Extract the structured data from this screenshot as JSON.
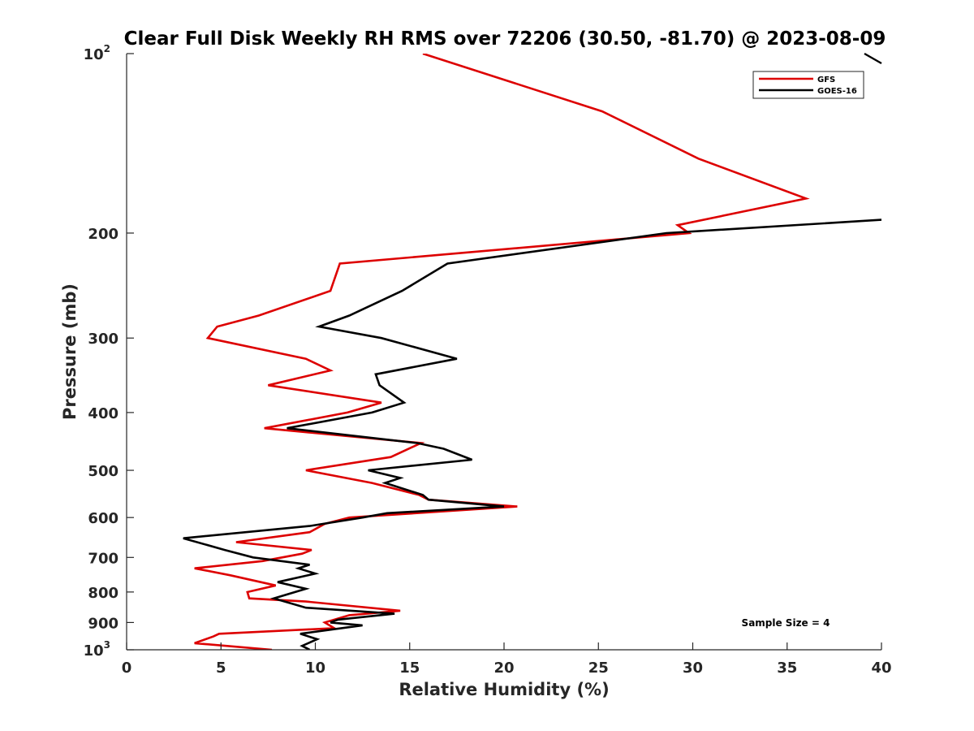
{
  "chart_data": {
    "type": "line",
    "title": "Clear Full Disk Weekly RH RMS over 72206 (30.50, -81.70) @ 2023-08-09",
    "xlabel": "Relative Humidity (%)",
    "ylabel": "Pressure (mb)",
    "xlim": [
      0,
      40
    ],
    "ylim": [
      100,
      1000
    ],
    "y_scale": "log",
    "y_reversed": true,
    "grid": false,
    "legend_position": "top-right",
    "x_ticks": [
      "0",
      "5",
      "10",
      "15",
      "20",
      "25",
      "30",
      "35",
      "40"
    ],
    "y_ticks": [
      {
        "value": 100,
        "base": "10",
        "exp": "2"
      },
      {
        "value": 200,
        "label": "200"
      },
      {
        "value": 300,
        "label": "300"
      },
      {
        "value": 400,
        "label": "400"
      },
      {
        "value": 500,
        "label": "500"
      },
      {
        "value": 600,
        "label": "600"
      },
      {
        "value": 700,
        "label": "700"
      },
      {
        "value": 800,
        "label": "800"
      },
      {
        "value": 900,
        "label": "900"
      },
      {
        "value": 1000,
        "base": "10",
        "exp": "3"
      }
    ],
    "annotation": "Sample Size = 4",
    "series": [
      {
        "name": "GFS",
        "color": "#dd0000",
        "points": [
          [
            15.7,
            100
          ],
          [
            25.2,
            125
          ],
          [
            30.3,
            150
          ],
          [
            36.0,
            175
          ],
          [
            29.2,
            194
          ],
          [
            29.8,
            200
          ],
          [
            11.3,
            225
          ],
          [
            10.8,
            250
          ],
          [
            7.0,
            275
          ],
          [
            4.8,
            287
          ],
          [
            4.3,
            300
          ],
          [
            9.5,
            325
          ],
          [
            10.8,
            340
          ],
          [
            7.5,
            360
          ],
          [
            13.5,
            385
          ],
          [
            11.7,
            400
          ],
          [
            7.3,
            425
          ],
          [
            15.6,
            450
          ],
          [
            14.0,
            475
          ],
          [
            9.5,
            500
          ],
          [
            13.0,
            525
          ],
          [
            15.5,
            550
          ],
          [
            16.0,
            560
          ],
          [
            20.7,
            575
          ],
          [
            11.8,
            600
          ],
          [
            10.5,
            615
          ],
          [
            9.7,
            635
          ],
          [
            5.8,
            660
          ],
          [
            9.8,
            680
          ],
          [
            9.3,
            690
          ],
          [
            7.2,
            710
          ],
          [
            3.6,
            730
          ],
          [
            5.5,
            750
          ],
          [
            7.9,
            780
          ],
          [
            6.4,
            800
          ],
          [
            6.5,
            820
          ],
          [
            9.5,
            830
          ],
          [
            14.5,
            860
          ],
          [
            11.8,
            875
          ],
          [
            10.5,
            900
          ],
          [
            11.0,
            920
          ],
          [
            4.9,
            940
          ],
          [
            4.6,
            950
          ],
          [
            3.6,
            975
          ],
          [
            7.7,
            1000
          ]
        ]
      },
      {
        "name": "GOES-16",
        "color": "#000000",
        "points": [
          [
            40.0,
            190
          ],
          [
            28.6,
            200
          ],
          [
            17.0,
            225
          ],
          [
            14.6,
            250
          ],
          [
            11.8,
            275
          ],
          [
            10.2,
            287
          ],
          [
            13.5,
            300
          ],
          [
            17.5,
            325
          ],
          [
            13.2,
            345
          ],
          [
            13.4,
            360
          ],
          [
            14.7,
            385
          ],
          [
            13.0,
            400
          ],
          [
            8.5,
            425
          ],
          [
            15.4,
            450
          ],
          [
            16.8,
            460
          ],
          [
            18.3,
            480
          ],
          [
            12.8,
            500
          ],
          [
            14.5,
            515
          ],
          [
            13.7,
            525
          ],
          [
            15.7,
            550
          ],
          [
            16.0,
            560
          ],
          [
            20.0,
            575
          ],
          [
            13.8,
            590
          ],
          [
            12.5,
            600
          ],
          [
            9.7,
            620
          ],
          [
            3.0,
            650
          ],
          [
            5.2,
            680
          ],
          [
            6.7,
            700
          ],
          [
            9.7,
            720
          ],
          [
            9.1,
            730
          ],
          [
            10.0,
            745
          ],
          [
            8.0,
            770
          ],
          [
            9.5,
            790
          ],
          [
            7.8,
            820
          ],
          [
            9.5,
            850
          ],
          [
            14.2,
            870
          ],
          [
            11.2,
            890
          ],
          [
            10.8,
            900
          ],
          [
            12.5,
            910
          ],
          [
            9.2,
            940
          ],
          [
            10.1,
            960
          ],
          [
            9.3,
            985
          ],
          [
            9.7,
            1000
          ]
        ]
      }
    ]
  }
}
